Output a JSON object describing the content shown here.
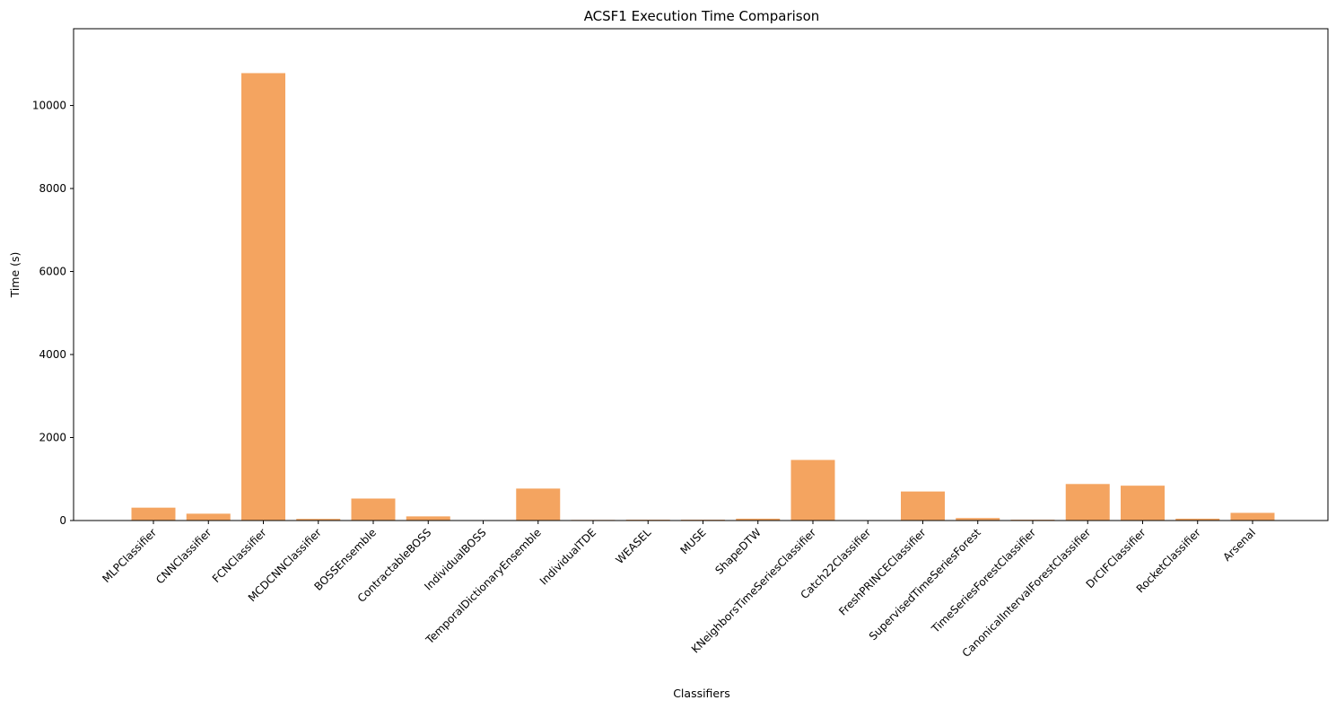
{
  "chart_data": {
    "type": "bar",
    "title": "ACSF1 Execution Time Comparison",
    "xlabel": "Classifiers",
    "ylabel": "Time (s)",
    "categories": [
      "MLPClassifier",
      "CNNClassifier",
      "FCNClassifier",
      "MCDCNNClassifier",
      "BOSSEnsemble",
      "ContractableBOSS",
      "IndividualBOSS",
      "TemporalDictionaryEnsemble",
      "IndividualTDE",
      "WEASEL",
      "MUSE",
      "ShapeDTW",
      "KNeighborsTimeSeriesClassifier",
      "Catch22Classifier",
      "FreshPRINCEClassifier",
      "SupervisedTimeSeriesForest",
      "TimeSeriesForestClassifier",
      "CanonicalIntervalForestClassifier",
      "DrCIFClassifier",
      "RocketClassifier",
      "Arsenal"
    ],
    "values": [
      310,
      165,
      10780,
      40,
      530,
      100,
      5,
      770,
      15,
      20,
      20,
      45,
      1460,
      5,
      700,
      60,
      20,
      880,
      840,
      45,
      185
    ],
    "ylim": [
      0,
      11850
    ],
    "yticks": [
      0,
      2000,
      4000,
      6000,
      8000,
      10000
    ],
    "bar_color": "#f4a460",
    "grid": false
  }
}
